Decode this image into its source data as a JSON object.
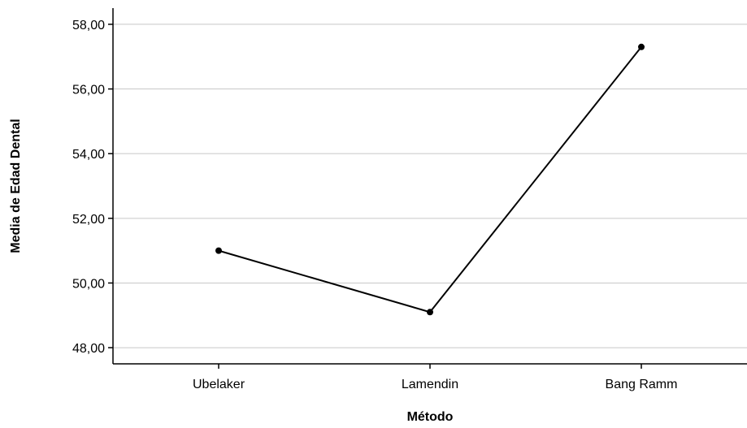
{
  "chart_data": {
    "type": "line",
    "title": "",
    "xlabel": "Método",
    "ylabel": "Media de Edad Dental",
    "categories": [
      "Ubelaker",
      "Lamendin",
      "Bang Ramm"
    ],
    "series": [
      {
        "values": [
          51.0,
          49.1,
          57.3
        ]
      }
    ],
    "ylim": [
      47.5,
      58.5
    ],
    "yticks": [
      48,
      50,
      52,
      54,
      56,
      58
    ],
    "ytick_labels": [
      "48,00",
      "50,00",
      "52,00",
      "54,00",
      "56,00",
      "58,00"
    ],
    "grid": "horizontal",
    "legend": "none",
    "line_color": "#000000",
    "grid_color": "#c8c8c8"
  }
}
